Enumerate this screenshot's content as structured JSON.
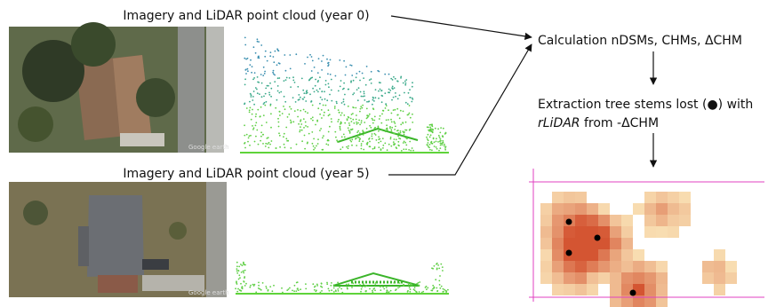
{
  "labels": {
    "year0": "Imagery and LiDAR point cloud (year 0)",
    "year5": "Imagery and LiDAR point cloud (year 5)",
    "calculation": "Calculation nDSMs, CHMs, ΔCHM",
    "extraction_line1": "Extraction tree stems lost (●) with",
    "extraction_italic": "rLiDAR",
    "extraction_rest": " from -ΔCHM",
    "watermark1": "Google earth",
    "watermark2": "Google earth"
  }
}
